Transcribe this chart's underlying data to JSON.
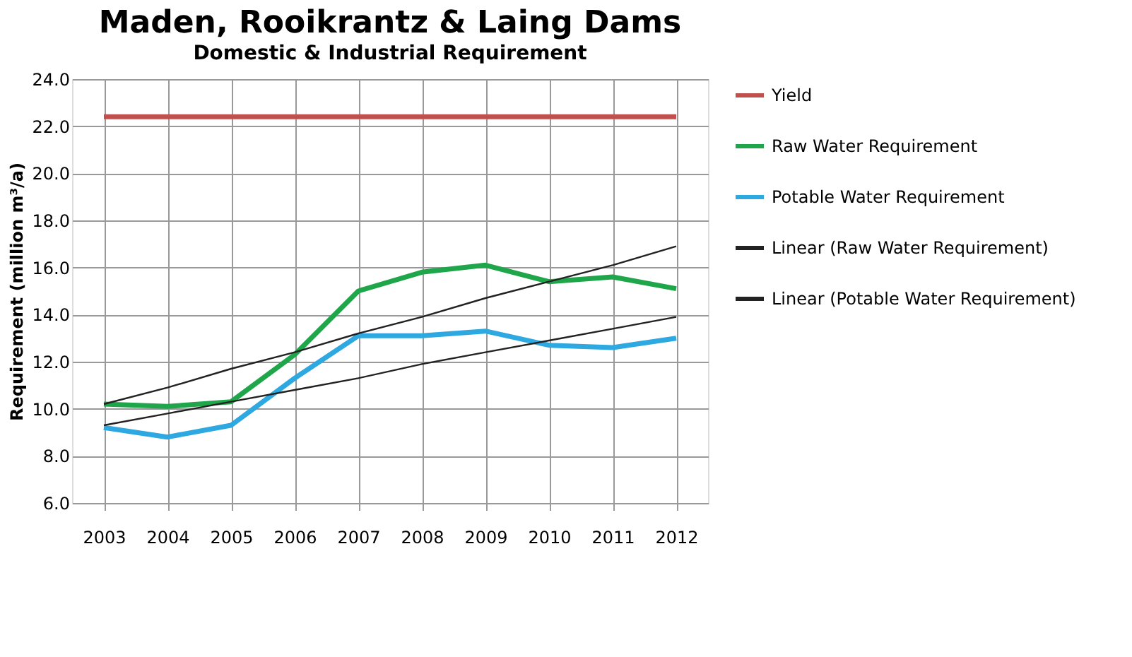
{
  "chart_data": {
    "type": "line",
    "title": "Maden, Rooikrantz & Laing Dams",
    "subtitle": "Domestic & Industrial Requirement",
    "ylabel": "Requirement (million m³/a)",
    "categories": [
      "2003",
      "2004",
      "2005",
      "2006",
      "2007",
      "2008",
      "2009",
      "2010",
      "2011",
      "2012"
    ],
    "ylim": [
      6,
      24
    ],
    "yticks": [
      {
        "value": 6,
        "label": "6.0"
      },
      {
        "value": 8,
        "label": "8.0"
      },
      {
        "value": 10,
        "label": "10.0"
      },
      {
        "value": 12,
        "label": "12.0"
      },
      {
        "value": 14,
        "label": "14.0"
      },
      {
        "value": 16,
        "label": "16.0"
      },
      {
        "value": 18,
        "label": "18.0"
      },
      {
        "value": 20,
        "label": "20.0"
      },
      {
        "value": 22,
        "label": "22.0"
      },
      {
        "value": 24,
        "label": "24.0"
      }
    ],
    "grid": true,
    "legend": "right",
    "marker": "none",
    "line_style": "solid",
    "series": [
      {
        "name": "Yield",
        "color": "#c0504d",
        "values": [
          22.4,
          22.4,
          22.4,
          22.4,
          22.4,
          22.4,
          22.4,
          22.4,
          22.4,
          22.4
        ]
      },
      {
        "name": "Raw Water Requirement",
        "color": "#1fa64a",
        "values": [
          10.2,
          10.1,
          10.3,
          12.3,
          15.0,
          15.8,
          16.1,
          15.4,
          15.6,
          15.1
        ]
      },
      {
        "name": "Potable Water Requirement",
        "color": "#2ea8e0",
        "values": [
          9.2,
          8.8,
          9.3,
          11.3,
          13.1,
          13.1,
          13.3,
          12.7,
          12.6,
          13.0
        ]
      },
      {
        "name": "Linear (Raw Water Requirement)",
        "color": "#222222",
        "type": "line",
        "values": [
          10.2,
          10.9,
          11.7,
          12.4,
          13.2,
          13.9,
          14.7,
          15.4,
          16.1,
          16.9
        ]
      },
      {
        "name": "Linear (Potable Water Requirement)",
        "color": "#222222",
        "type": "line",
        "values": [
          9.3,
          9.8,
          10.3,
          10.8,
          11.3,
          11.9,
          12.4,
          12.9,
          13.4,
          13.9
        ]
      }
    ]
  }
}
